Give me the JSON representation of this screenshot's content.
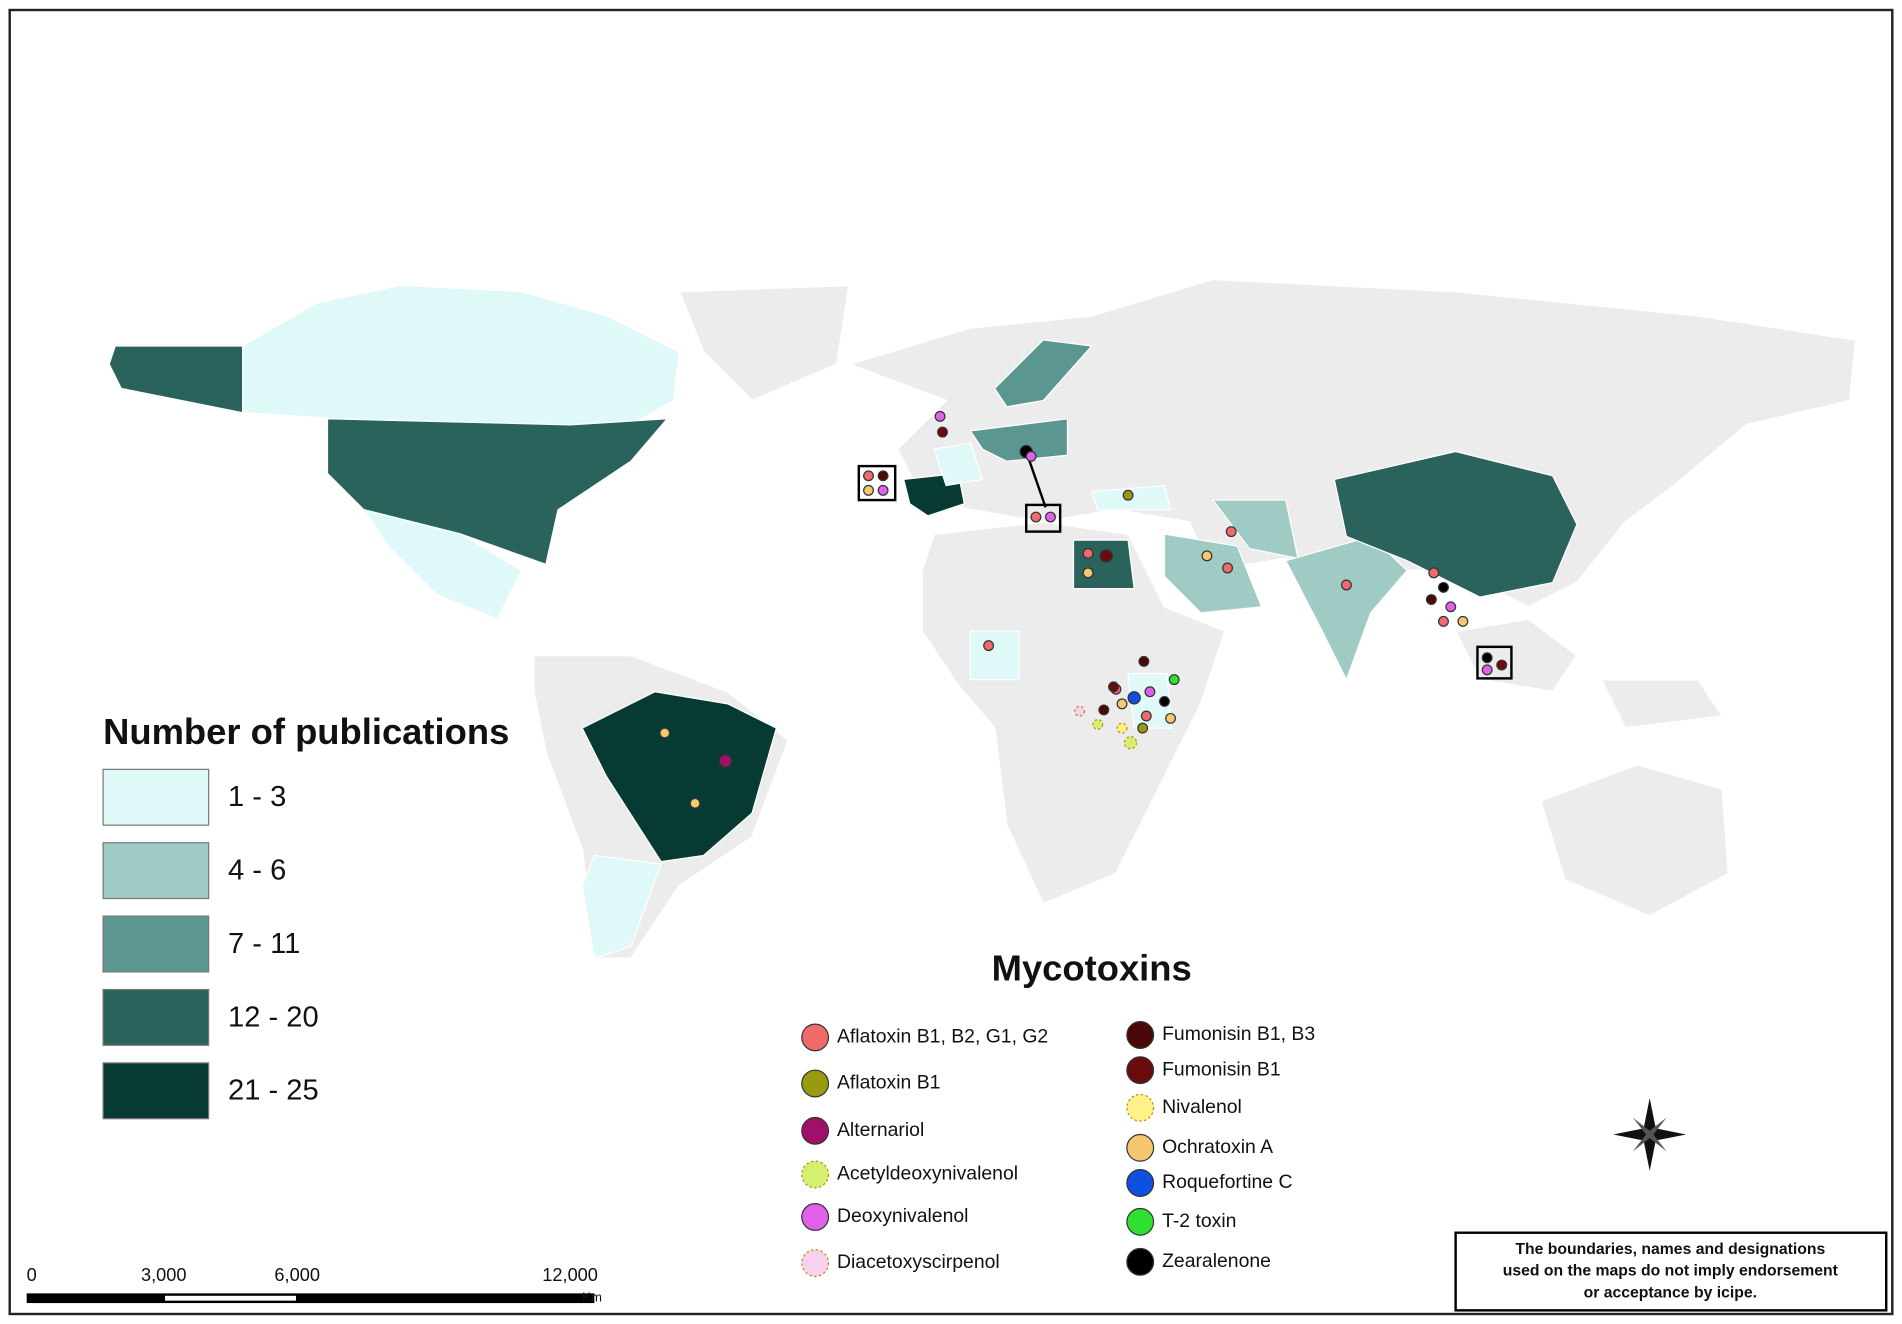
{
  "legend_publications": {
    "title": "Number of publications",
    "classes": [
      {
        "label": "1 - 3",
        "color": "#dff8f8"
      },
      {
        "label": "4 - 6",
        "color": "#9fcbc4"
      },
      {
        "label": "7 - 11",
        "color": "#5b9790"
      },
      {
        "label": "12 - 20",
        "color": "#2a625c"
      },
      {
        "label": "21 - 25",
        "color": "#073a33"
      }
    ]
  },
  "legend_mycotoxins": {
    "title": "Mycotoxins",
    "items": [
      {
        "label": "Aflatoxin B1, B2, G1, G2",
        "color": "#f06a6a"
      },
      {
        "label": "Aflatoxin B1",
        "color": "#9a9a10"
      },
      {
        "label": "Alternariol",
        "color": "#a0106a"
      },
      {
        "label": "Acetyldeoxynivalenol",
        "color": "#d4f070",
        "dashed": true
      },
      {
        "label": "Deoxynivalenol",
        "color": "#e060e8"
      },
      {
        "label": "Diacetoxyscirpenol",
        "color": "#f8d0f0",
        "dashed": true
      },
      {
        "label": "Fumonisin B1, B3",
        "color": "#4a0808"
      },
      {
        "label": "Fumonisin B1",
        "color": "#6a0c0c"
      },
      {
        "label": "Nivalenol",
        "color": "#fff08a",
        "dashed": true
      },
      {
        "label": "Ochratoxin A",
        "color": "#f5c870"
      },
      {
        "label": "Roquefortine C",
        "color": "#1050e0"
      },
      {
        "label": "T-2 toxin",
        "color": "#30e030"
      },
      {
        "label": "Zearalenone",
        "color": "#000000"
      }
    ]
  },
  "scale_bar": {
    "labels": [
      "0",
      "3,000",
      "6,000",
      "12,000"
    ],
    "unit": "Km"
  },
  "disclaimer": [
    "The boundaries, names and designations",
    "used on the maps do not imply endorsement",
    "or acceptance by icipe."
  ]
}
